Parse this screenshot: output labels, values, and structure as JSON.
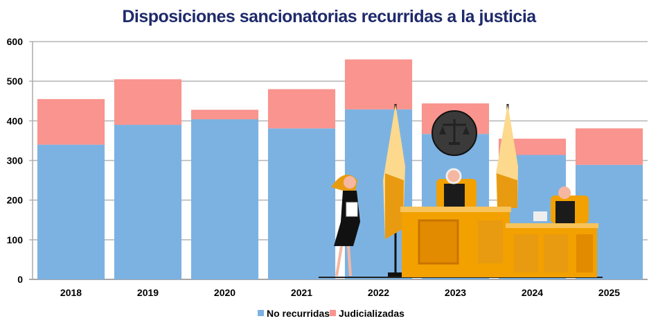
{
  "chart_data": {
    "type": "bar",
    "stacked": true,
    "title": "Disposiciones sancionatorias recurridas a la justicia",
    "categories": [
      "2018",
      "2019",
      "2020",
      "2021",
      "2022",
      "2023",
      "2024",
      "2025"
    ],
    "series": [
      {
        "name": "No recurridas",
        "color": "#7cb2e2",
        "values": [
          340,
          390,
          404,
          381,
          429,
          367,
          314,
          289
        ]
      },
      {
        "name": "Judicializadas",
        "color": "#f9948e",
        "values": [
          115,
          115,
          24,
          99,
          126,
          77,
          41,
          92
        ]
      }
    ],
    "yticks": [
      0,
      100,
      200,
      300,
      400,
      500,
      600
    ],
    "ylim": [
      0,
      600
    ],
    "grid": true,
    "legend": "bottom",
    "xlabel": "",
    "ylabel": ""
  }
}
